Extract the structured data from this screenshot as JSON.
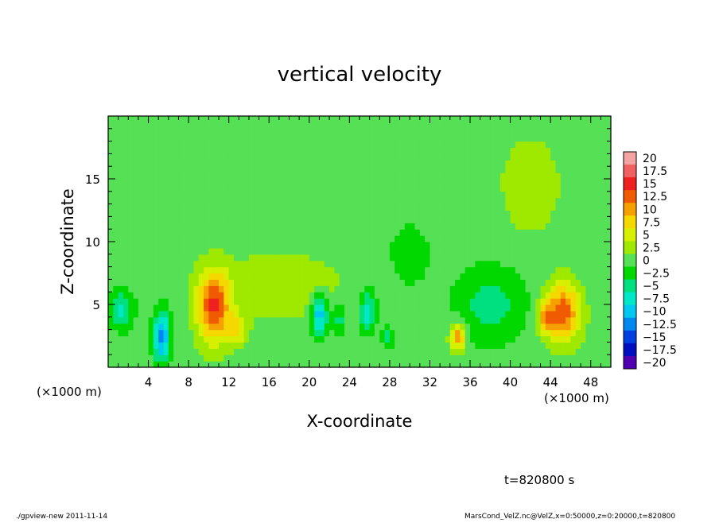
{
  "chart_data": {
    "type": "heatmap",
    "title": "vertical velocity",
    "xlabel": "X-coordinate",
    "ylabel": "Z-coordinate",
    "x_unit_label_left": "(×1000 m)",
    "x_unit_label_right": "(×1000 m)",
    "xlim": [
      0,
      50
    ],
    "ylim": [
      0,
      20
    ],
    "x_ticks": [
      4,
      8,
      12,
      16,
      20,
      24,
      28,
      32,
      36,
      40,
      44,
      48
    ],
    "y_ticks": [
      5,
      10,
      15
    ],
    "colorbar": {
      "levels": [
        20,
        17.5,
        15,
        12.5,
        10,
        7.5,
        5,
        2.5,
        0,
        -2.5,
        -5,
        -7.5,
        -10,
        -12.5,
        -15,
        -17.5,
        -20
      ],
      "level_labels": [
        "20",
        "17.5",
        "15",
        "12.5",
        "10",
        "7.5",
        "5",
        "2.5",
        "0",
        "−2.5",
        "−5",
        "−7.5",
        "−10",
        "−12.5",
        "−15",
        "−17.5",
        "−20"
      ],
      "colors": [
        "#f4a3a3",
        "#f06060",
        "#ee2020",
        "#f05a00",
        "#f5a000",
        "#f5d800",
        "#d7ef00",
        "#9fe800",
        "#55e055",
        "#00d800",
        "#00e080",
        "#00e8c8",
        "#00c8f0",
        "#0088f0",
        "#0040e0",
        "#0010c0",
        "#5000b0"
      ]
    },
    "background_value": 0,
    "features": [
      {
        "x": 1.3,
        "z": 4.6,
        "rx": 1.2,
        "rz": 1.5,
        "w": -7
      },
      {
        "x": 5.3,
        "z": 2.5,
        "rx": 0.8,
        "rz": 2.0,
        "w": -13
      },
      {
        "x": 10.5,
        "z": 4.8,
        "rx": 1.6,
        "rz": 2.8,
        "w": 14
      },
      {
        "x": 12.8,
        "z": 3.0,
        "rx": 1.0,
        "rz": 1.2,
        "w": 6
      },
      {
        "x": 21.0,
        "z": 4.2,
        "rx": 0.8,
        "rz": 1.6,
        "w": -11
      },
      {
        "x": 23.0,
        "z": 4.0,
        "rx": 0.7,
        "rz": 1.2,
        "w": -5
      },
      {
        "x": 25.8,
        "z": 4.5,
        "rx": 0.8,
        "rz": 1.6,
        "w": -8
      },
      {
        "x": 27.8,
        "z": 2.4,
        "rx": 0.6,
        "rz": 0.8,
        "w": -5
      },
      {
        "x": 34.8,
        "z": 2.5,
        "rx": 0.8,
        "rz": 1.1,
        "w": 11
      },
      {
        "x": 38.0,
        "z": 5.0,
        "rx": 3.5,
        "rz": 3.0,
        "w": -5
      },
      {
        "x": 45.2,
        "z": 4.4,
        "rx": 1.7,
        "rz": 2.3,
        "w": 13
      },
      {
        "x": 43.5,
        "z": 4.0,
        "rx": 0.8,
        "rz": 1.2,
        "w": 7
      },
      {
        "x": 17.0,
        "z": 6.5,
        "rx": 6.0,
        "rz": 2.5,
        "w": 3.5
      },
      {
        "x": 30.0,
        "z": 9.0,
        "rx": 2.0,
        "rz": 2.5,
        "w": -3
      },
      {
        "x": 42.0,
        "z": 14.5,
        "rx": 3.0,
        "rz": 4.0,
        "w": 3
      }
    ]
  },
  "footer": {
    "time_label": "t=820800 s",
    "program_label": "./gpview-new  2011-11-14",
    "file_label": "MarsCond_VelZ.nc@VelZ,x=0:50000,z=0:20000,t=820800"
  }
}
